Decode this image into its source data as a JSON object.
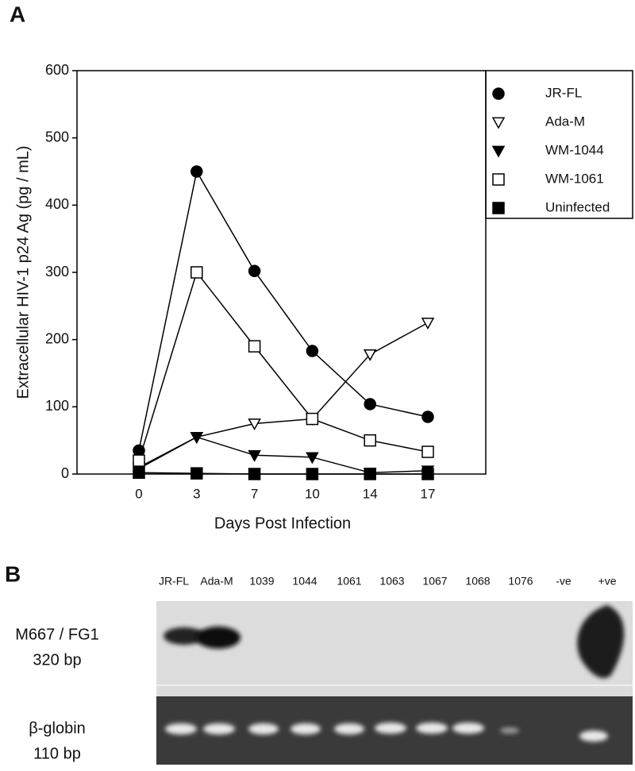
{
  "panel_labels": [
    "A",
    "B"
  ],
  "chart_data": {
    "type": "line",
    "x_label": "Days Post Infection",
    "y_label": "Extracellular HIV-1 p24 Ag (pg / mL)",
    "categories": [
      "0",
      "3",
      "7",
      "10",
      "14",
      "17"
    ],
    "ylim": [
      0,
      600
    ],
    "yticks": [
      0,
      100,
      200,
      300,
      400,
      500,
      600
    ],
    "grid": false,
    "legend": "outside-upper-right",
    "series": [
      {
        "name": "JR-FL",
        "color": "#000000",
        "marker": "circle-filled",
        "values": [
          35,
          450,
          302,
          183,
          104,
          85
        ]
      },
      {
        "name": "Ada-M",
        "color": "#000000",
        "marker": "triangle-down-open",
        "values": [
          10,
          55,
          75,
          82,
          178,
          225
        ]
      },
      {
        "name": "WM-1044",
        "color": "#000000",
        "marker": "triangle-down-filled",
        "values": [
          8,
          55,
          28,
          25,
          2,
          5
        ]
      },
      {
        "name": "WM-1061",
        "color": "#000000",
        "marker": "square-open",
        "values": [
          20,
          300,
          190,
          82,
          50,
          33
        ]
      },
      {
        "name": "Uninfected",
        "color": "#000000",
        "marker": "square-filled",
        "values": [
          2,
          1,
          0,
          0,
          0,
          0
        ]
      }
    ]
  },
  "gel": {
    "lanes": [
      "JR-FL",
      "Ada-M",
      "1039",
      "1044",
      "1061",
      "1063",
      "1067",
      "1068",
      "1076",
      "-ve",
      "+ve"
    ],
    "rows": [
      {
        "name": "M667 / FG1",
        "size": "320 bp"
      },
      {
        "name": "β-globin",
        "size": "110 bp"
      }
    ]
  }
}
